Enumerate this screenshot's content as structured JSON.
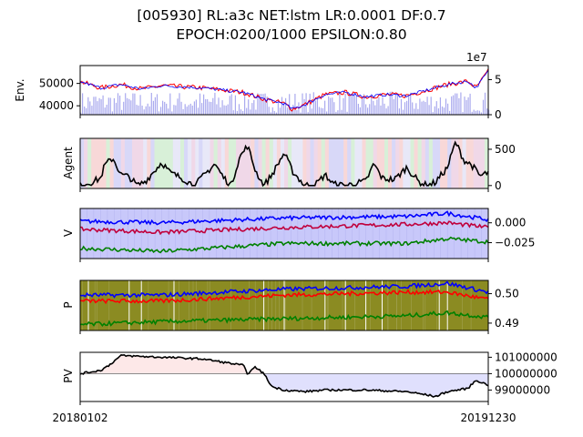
{
  "title_line1": "[005930] RL:a3c NET:lstm LR:0.0001 DF:0.7",
  "title_line2": "EPOCH:0200/1000 EPSILON:0.80",
  "colors": {
    "price": "#ff0000",
    "ma": "#0000ff",
    "volume": "#aaaaee",
    "v_blue": "#0000ff",
    "v_red": "#c0003c",
    "v_green": "#008000",
    "p_blue": "#0000ff",
    "p_red": "#ff0000",
    "p_green": "#008000",
    "p_bg": "#8b8b22",
    "pv_pos": "#fde8e8",
    "pv_neg": "#e0e0fd"
  },
  "chart_data": [
    {
      "panel": "env",
      "type": "line",
      "ylabel": "Env.",
      "left_ticks": [
        "40000",
        "50000"
      ],
      "right_ticks": [
        "0",
        "5"
      ],
      "right_offset": "1e7",
      "ylim": [
        36000,
        58000
      ],
      "right_ylim": [
        0,
        70000000
      ],
      "series": [
        {
          "name": "",
          "anchors": [
            [
              0,
              50800
            ],
            [
              0.05,
              48000
            ],
            [
              0.1,
              49500
            ],
            [
              0.15,
              47500
            ],
            [
              0.2,
              49000
            ],
            [
              0.25,
              48500
            ],
            [
              0.3,
              48000
            ],
            [
              0.35,
              47000
            ],
            [
              0.4,
              46000
            ],
            [
              0.45,
              43000
            ],
            [
              0.5,
              41000
            ],
            [
              0.52,
              38500
            ],
            [
              0.55,
              40500
            ],
            [
              0.6,
              45000
            ],
            [
              0.65,
              46000
            ],
            [
              0.7,
              44000
            ],
            [
              0.75,
              45000
            ],
            [
              0.8,
              44500
            ],
            [
              0.85,
              47000
            ],
            [
              0.9,
              49500
            ],
            [
              0.95,
              51000
            ],
            [
              0.97,
              48000
            ],
            [
              1,
              55500
            ]
          ]
        }
      ]
    },
    {
      "panel": "agent",
      "type": "line",
      "ylabel": "Agent",
      "ticks": [
        "0",
        "500"
      ],
      "ylim": [
        -40,
        650
      ],
      "anchors": [
        [
          0,
          0
        ],
        [
          0.03,
          50
        ],
        [
          0.05,
          100
        ],
        [
          0.06,
          280
        ],
        [
          0.08,
          380
        ],
        [
          0.1,
          150
        ],
        [
          0.12,
          120
        ],
        [
          0.14,
          0
        ],
        [
          0.16,
          60
        ],
        [
          0.2,
          320
        ],
        [
          0.22,
          180
        ],
        [
          0.25,
          100
        ],
        [
          0.28,
          0
        ],
        [
          0.3,
          120
        ],
        [
          0.33,
          300
        ],
        [
          0.35,
          120
        ],
        [
          0.37,
          0
        ],
        [
          0.39,
          380
        ],
        [
          0.41,
          550
        ],
        [
          0.43,
          200
        ],
        [
          0.45,
          0
        ],
        [
          0.47,
          150
        ],
        [
          0.5,
          450
        ],
        [
          0.52,
          200
        ],
        [
          0.55,
          0
        ],
        [
          0.58,
          30
        ],
        [
          0.6,
          150
        ],
        [
          0.62,
          20
        ],
        [
          0.65,
          0
        ],
        [
          0.7,
          60
        ],
        [
          0.72,
          300
        ],
        [
          0.74,
          100
        ],
        [
          0.77,
          80
        ],
        [
          0.8,
          250
        ],
        [
          0.83,
          50
        ],
        [
          0.85,
          0
        ],
        [
          0.87,
          40
        ],
        [
          0.9,
          250
        ],
        [
          0.92,
          600
        ],
        [
          0.94,
          350
        ],
        [
          0.96,
          280
        ],
        [
          0.98,
          130
        ],
        [
          1,
          180
        ]
      ]
    },
    {
      "panel": "value",
      "type": "line",
      "ylabel": "V",
      "ticks": [
        "0.000",
        "−0.025"
      ],
      "ylim": [
        -0.045,
        0.018
      ],
      "series": [
        {
          "name": "",
          "anchors": [
            [
              0,
              0.002
            ],
            [
              0.2,
              0.0
            ],
            [
              0.5,
              0.006
            ],
            [
              0.8,
              0.008
            ],
            [
              0.9,
              0.012
            ],
            [
              1,
              0.004
            ]
          ]
        },
        {
          "name": "",
          "anchors": [
            [
              0,
              -0.008
            ],
            [
              0.2,
              -0.012
            ],
            [
              0.5,
              -0.006
            ],
            [
              0.8,
              -0.002
            ],
            [
              0.9,
              0.0
            ],
            [
              1,
              -0.006
            ]
          ]
        },
        {
          "name": "",
          "anchors": [
            [
              0,
              -0.032
            ],
            [
              0.2,
              -0.036
            ],
            [
              0.5,
              -0.026
            ],
            [
              0.8,
              -0.026
            ],
            [
              0.9,
              -0.02
            ],
            [
              1,
              -0.024
            ]
          ]
        }
      ]
    },
    {
      "panel": "policy",
      "type": "line",
      "ylabel": "P",
      "ticks": [
        "0.50",
        "0.49"
      ],
      "ylim": [
        0.4875,
        0.5045
      ],
      "series": [
        {
          "name": "",
          "anchors": [
            [
              0,
              0.4995
            ],
            [
              0.2,
              0.4995
            ],
            [
              0.5,
              0.5015
            ],
            [
              0.8,
              0.5025
            ],
            [
              0.9,
              0.5035
            ],
            [
              1,
              0.5005
            ]
          ]
        },
        {
          "name": "",
          "anchors": [
            [
              0,
              0.4975
            ],
            [
              0.2,
              0.4975
            ],
            [
              0.5,
              0.4995
            ],
            [
              0.8,
              0.5005
            ],
            [
              0.9,
              0.5005
            ],
            [
              1,
              0.498
            ]
          ]
        },
        {
          "name": "",
          "anchors": [
            [
              0,
              0.4895
            ],
            [
              0.2,
              0.4905
            ],
            [
              0.5,
              0.4915
            ],
            [
              0.8,
              0.4925
            ],
            [
              0.9,
              0.4935
            ],
            [
              1,
              0.492
            ]
          ]
        }
      ]
    },
    {
      "panel": "pv",
      "type": "line",
      "ylabel": "PV",
      "ticks": [
        "101000000",
        "100000000",
        "99000000"
      ],
      "baseline": 100000000,
      "ylim": [
        98300000,
        101300000
      ],
      "anchors": [
        [
          0,
          100000000
        ],
        [
          0.05,
          100200000
        ],
        [
          0.07,
          100500000
        ],
        [
          0.1,
          101100000
        ],
        [
          0.2,
          101000000
        ],
        [
          0.3,
          100900000
        ],
        [
          0.35,
          100700000
        ],
        [
          0.4,
          100500000
        ],
        [
          0.41,
          100000000
        ],
        [
          0.43,
          100400000
        ],
        [
          0.45,
          100000000
        ],
        [
          0.47,
          99200000
        ],
        [
          0.5,
          99000000
        ],
        [
          0.55,
          98900000
        ],
        [
          0.6,
          99000000
        ],
        [
          0.65,
          99000000
        ],
        [
          0.7,
          99000000
        ],
        [
          0.8,
          98900000
        ],
        [
          0.85,
          98700000
        ],
        [
          0.87,
          98600000
        ],
        [
          0.9,
          98900000
        ],
        [
          0.95,
          99100000
        ],
        [
          0.97,
          99600000
        ],
        [
          1,
          99300000
        ]
      ]
    }
  ],
  "x_axis": {
    "start_label": "20180102",
    "end_label": "20191230"
  }
}
